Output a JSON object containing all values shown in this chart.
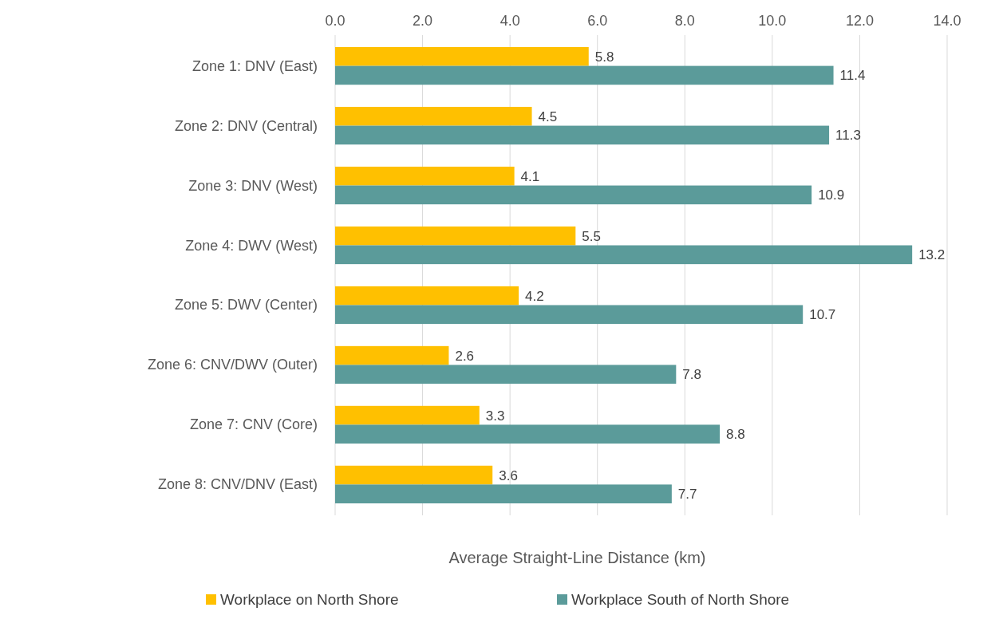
{
  "chart_data": {
    "type": "bar",
    "orientation": "horizontal",
    "xlabel": "Average Straight-Line Distance (km)",
    "categories": [
      "Zone 1: DNV (East)",
      "Zone 2: DNV (Central)",
      "Zone 3: DNV (West)",
      "Zone 4: DWV (West)",
      "Zone 5: DWV (Center)",
      "Zone 6: CNV/DWV (Outer)",
      "Zone 7: CNV (Core)",
      "Zone 8: CNV/DNV (East)"
    ],
    "series": [
      {
        "name": "Workplace on North Shore",
        "color": "#ffc000",
        "values": [
          5.8,
          4.5,
          4.1,
          5.5,
          4.2,
          2.6,
          3.3,
          3.6
        ]
      },
      {
        "name": "Workplace South of North Shore",
        "color": "#5b9b9a",
        "values": [
          11.4,
          11.3,
          10.9,
          13.2,
          10.7,
          7.8,
          8.8,
          7.7
        ]
      }
    ],
    "xlim": [
      0,
      14
    ],
    "xticks": [
      {
        "value": 0,
        "label": "0.0"
      },
      {
        "value": 2,
        "label": "2.0"
      },
      {
        "value": 4,
        "label": "4.0"
      },
      {
        "value": 6,
        "label": "6.0"
      },
      {
        "value": 8,
        "label": "8.0"
      },
      {
        "value": 10,
        "label": "10.0"
      },
      {
        "value": 12,
        "label": "12.0"
      },
      {
        "value": 14,
        "label": "14.0"
      }
    ],
    "grid": "x",
    "legend": "bottom",
    "data_labels": true
  }
}
